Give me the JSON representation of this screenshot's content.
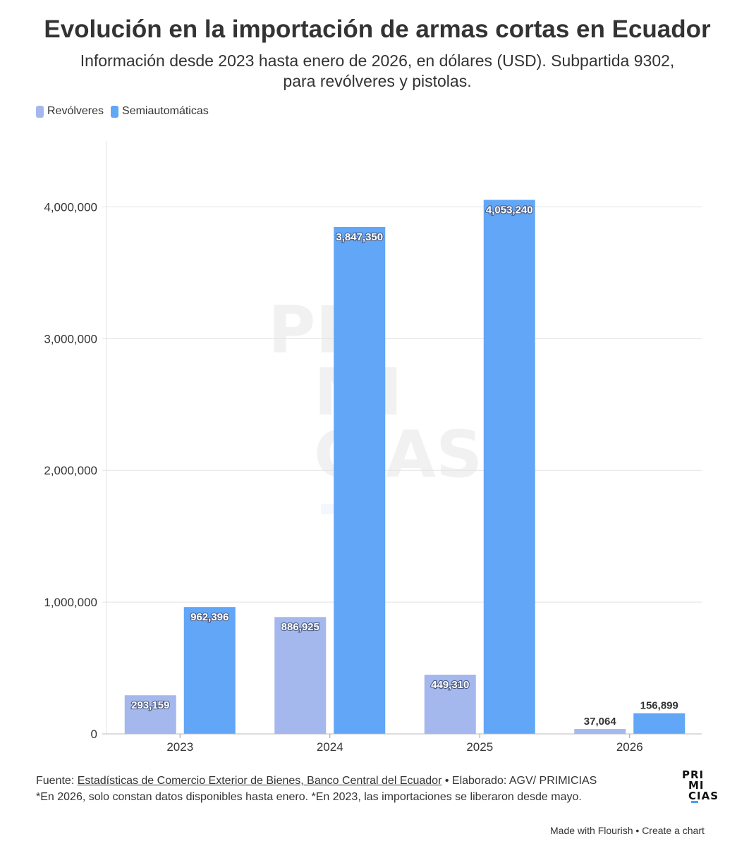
{
  "chart_data": {
    "type": "bar",
    "title": "Evolución en la importación de armas cortas en Ecuador",
    "subtitle_line1": "Información desde 2023 hasta enero de 2026, en dólares (USD). Subpartida 9302,",
    "subtitle_line2": "para revólveres y pistolas.",
    "categories": [
      "2023",
      "2024",
      "2025",
      "2026"
    ],
    "series": [
      {
        "name": "Revólveres",
        "color": "#a4b8ee",
        "values": [
          293159,
          886925,
          449310,
          37064
        ],
        "labels": [
          "293,159",
          "886,925",
          "449,310",
          "37,064"
        ]
      },
      {
        "name": "Semiautomáticas",
        "color": "#61a6f7",
        "values": [
          962396,
          3847350,
          4053240,
          156899
        ],
        "labels": [
          "962,396",
          "3,847,350",
          "4,053,240",
          "156,899"
        ]
      }
    ],
    "yticks": [
      0,
      1000000,
      2000000,
      3000000,
      4000000
    ],
    "ytick_labels": [
      "0",
      "1,000,000",
      "2,000,000",
      "3,000,000",
      "4,000,000"
    ],
    "ylim": [
      0,
      4500000
    ],
    "grid": true,
    "legend": "top-left"
  },
  "watermark": {
    "line1": "PRI",
    "line2": "MI",
    "line3": "CIAS"
  },
  "footer": {
    "source_prefix": "Fuente: ",
    "source_link": "Estadísticas de Comercio Exterior de Bienes, Banco Central del Ecuador",
    "source_suffix": " • Elaborado: AGV/ PRIMICIAS",
    "note": "*En 2026, solo constan datos disponibles hasta enero. *En 2023, las importaciones se liberaron desde mayo."
  },
  "logo": {
    "line1": "PRI",
    "line2": "MI",
    "line3": "CIAS"
  },
  "credits": {
    "made_with": "Made with Flourish",
    "separator": " • ",
    "create": "Create a chart"
  }
}
